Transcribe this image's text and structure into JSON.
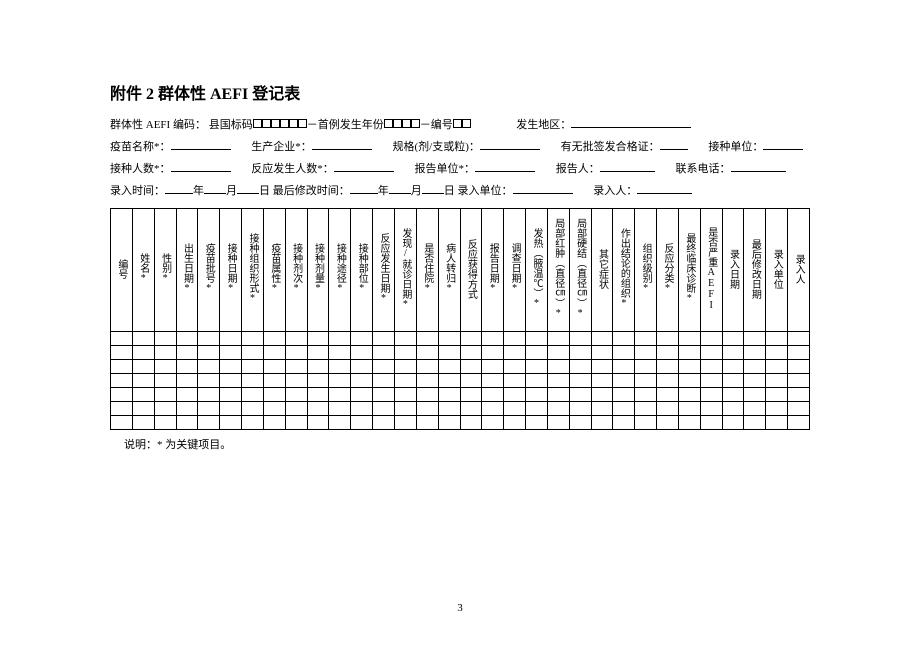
{
  "title": "附件 2   群体性 AEFI 登记表",
  "line1": {
    "label1": "群体性 AEFI 编码：",
    "label2": "县国标码",
    "label3": "－首例发生年份",
    "label4": "－编号",
    "label5": "发生地区："
  },
  "line2": {
    "label1": "疫苗名称*：",
    "label2": "生产企业*：",
    "label3": "规格(剂/支或粒)：",
    "label4": "有无批签发合格证：",
    "label5": "接种单位："
  },
  "line3": {
    "label1": "接种人数*：",
    "label2": "反应发生人数*：",
    "label3": "报告单位*：",
    "label4": "报告人：",
    "label5": "联系电话："
  },
  "line4": {
    "label1": "录入时间：",
    "y": "年",
    "m": "月",
    "d": "日",
    "label2": " 最后修改时间：",
    "label3": " 录入单位：",
    "label4": "录入人："
  },
  "columns": [
    "编号",
    "姓名*",
    "性别*",
    "出生日期*",
    "疫苗批号*",
    "接种日期*",
    "接种组织形式*",
    "疫苗属性*",
    "接种剂次*",
    "接种剂量*",
    "接种途径*",
    "接种部位*",
    "反应发生日期*",
    "发现/就诊日期*",
    "是否住院*",
    "病人转归*",
    "反应获得方式",
    "报告日期*",
    "调查日期*",
    "发热（腋温℃）*",
    "局部红肿（直径㎝）*",
    "局部硬结（直径㎝）*",
    "其它症状",
    "作出结论的组织*",
    "组织级别*",
    "反应分类*",
    "最终临床诊断*",
    "是否严重AEFI",
    "录入日期",
    "最后修改日期",
    "录入单位",
    "录入人"
  ],
  "emptyRows": 7,
  "footnote": "说明：* 为关键项目。",
  "pageNumber": "3"
}
